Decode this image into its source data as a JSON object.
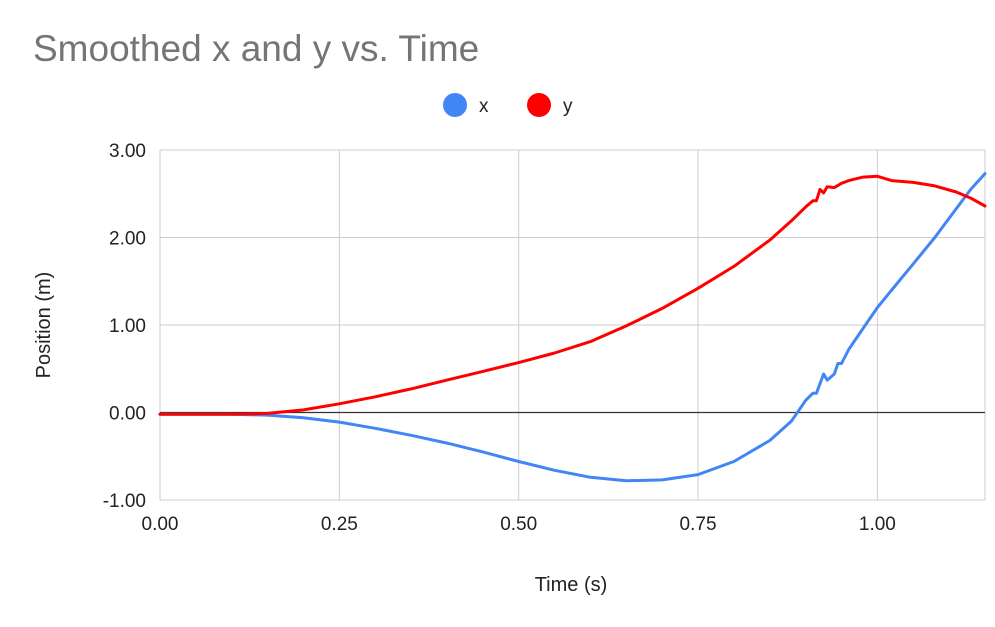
{
  "chart_data": {
    "type": "line",
    "title": "Smoothed x and y vs. Time",
    "xlabel": "Time (s)",
    "ylabel": "Position (m)",
    "xlim": [
      0,
      1.15
    ],
    "ylim": [
      -1,
      3
    ],
    "x_ticks": [
      "0.00",
      "0.25",
      "0.50",
      "0.75",
      "1.00"
    ],
    "y_ticks": [
      "-1.00",
      "0.00",
      "1.00",
      "2.00",
      "3.00"
    ],
    "grid": true,
    "legend_position": "top",
    "series": [
      {
        "name": "x",
        "color": "#4285f4",
        "points": [
          [
            0,
            -0.02
          ],
          [
            0.05,
            -0.02
          ],
          [
            0.1,
            -0.02
          ],
          [
            0.15,
            -0.03
          ],
          [
            0.2,
            -0.06
          ],
          [
            0.25,
            -0.11
          ],
          [
            0.3,
            -0.18
          ],
          [
            0.35,
            -0.26
          ],
          [
            0.4,
            -0.35
          ],
          [
            0.45,
            -0.45
          ],
          [
            0.5,
            -0.56
          ],
          [
            0.55,
            -0.66
          ],
          [
            0.6,
            -0.74
          ],
          [
            0.65,
            -0.78
          ],
          [
            0.7,
            -0.77
          ],
          [
            0.75,
            -0.71
          ],
          [
            0.8,
            -0.56
          ],
          [
            0.85,
            -0.32
          ],
          [
            0.88,
            -0.1
          ],
          [
            0.9,
            0.14
          ],
          [
            0.91,
            0.22
          ],
          [
            0.915,
            0.22
          ],
          [
            0.925,
            0.44
          ],
          [
            0.93,
            0.37
          ],
          [
            0.94,
            0.44
          ],
          [
            0.945,
            0.56
          ],
          [
            0.95,
            0.56
          ],
          [
            0.96,
            0.72
          ],
          [
            0.98,
            0.96
          ],
          [
            1.0,
            1.2
          ],
          [
            1.02,
            1.4
          ],
          [
            1.05,
            1.7
          ],
          [
            1.08,
            2.0
          ],
          [
            1.11,
            2.33
          ],
          [
            1.13,
            2.55
          ],
          [
            1.15,
            2.73
          ]
        ]
      },
      {
        "name": "y",
        "color": "#ff0000",
        "points": [
          [
            0,
            -0.02
          ],
          [
            0.05,
            -0.02
          ],
          [
            0.1,
            -0.02
          ],
          [
            0.15,
            -0.01
          ],
          [
            0.2,
            0.03
          ],
          [
            0.25,
            0.1
          ],
          [
            0.3,
            0.18
          ],
          [
            0.35,
            0.27
          ],
          [
            0.4,
            0.37
          ],
          [
            0.45,
            0.47
          ],
          [
            0.5,
            0.57
          ],
          [
            0.55,
            0.68
          ],
          [
            0.6,
            0.81
          ],
          [
            0.65,
            0.99
          ],
          [
            0.7,
            1.19
          ],
          [
            0.75,
            1.42
          ],
          [
            0.8,
            1.67
          ],
          [
            0.85,
            1.97
          ],
          [
            0.88,
            2.19
          ],
          [
            0.9,
            2.35
          ],
          [
            0.91,
            2.42
          ],
          [
            0.915,
            2.42
          ],
          [
            0.92,
            2.55
          ],
          [
            0.925,
            2.51
          ],
          [
            0.93,
            2.58
          ],
          [
            0.94,
            2.57
          ],
          [
            0.95,
            2.62
          ],
          [
            0.96,
            2.65
          ],
          [
            0.98,
            2.69
          ],
          [
            1.0,
            2.7
          ],
          [
            1.02,
            2.65
          ],
          [
            1.05,
            2.63
          ],
          [
            1.08,
            2.59
          ],
          [
            1.11,
            2.52
          ],
          [
            1.13,
            2.45
          ],
          [
            1.15,
            2.36
          ]
        ]
      }
    ]
  }
}
